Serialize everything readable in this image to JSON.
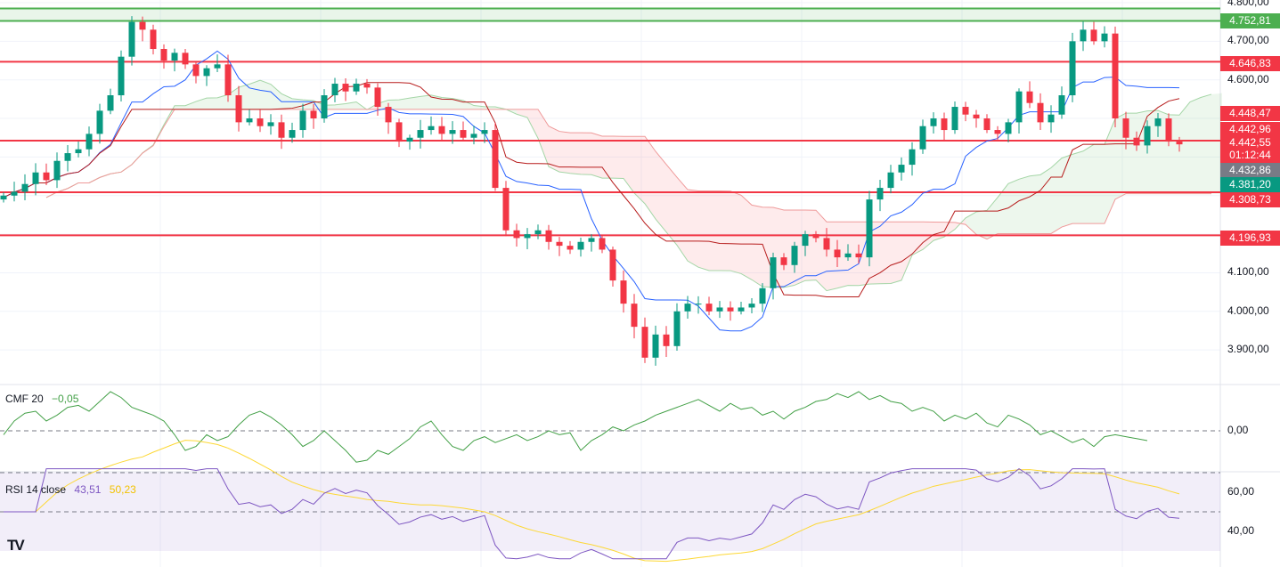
{
  "chart_data": {
    "type": "candlestick",
    "price_axis": {
      "range": [
        3850,
        4800
      ],
      "ticks": [
        "4.800,00",
        "4.700,00",
        "4.600,00",
        "4.100,00",
        "4.000,00",
        "3.900,00"
      ],
      "tick_values": [
        4800,
        4700,
        4600,
        4100,
        4000,
        3900
      ]
    },
    "closes": [
      4300,
      4310,
      4330,
      4360,
      4340,
      4390,
      4410,
      4420,
      4460,
      4520,
      4560,
      4660,
      4750,
      4730,
      4680,
      4650,
      4670,
      4640,
      4610,
      4630,
      4640,
      4560,
      4490,
      4500,
      4480,
      4490,
      4450,
      4470,
      4520,
      4500,
      4560,
      4590,
      4570,
      4590,
      4580,
      4530,
      4490,
      4440,
      4450,
      4470,
      4480,
      4460,
      4470,
      4450,
      4460,
      4470,
      4320,
      4210,
      4190,
      4200,
      4210,
      4180,
      4170,
      4160,
      4180,
      4190,
      4160,
      4080,
      4020,
      3960,
      3880,
      3940,
      3910,
      4000,
      4020,
      4020,
      4000,
      4010,
      4000,
      4010,
      4020,
      4060,
      4140,
      4120,
      4170,
      4200,
      4190,
      4160,
      4140,
      4150,
      4140,
      4290,
      4320,
      4360,
      4380,
      4420,
      4480,
      4500,
      4470,
      4530,
      4510,
      4500,
      4470,
      4460,
      4490,
      4570,
      4540,
      4490,
      4510,
      4560,
      4700,
      4730,
      4700,
      4720,
      4500,
      4450,
      4430,
      4480,
      4500,
      4440,
      4432.86
    ],
    "levels": [
      {
        "value": 4752.81,
        "label": "4.752,81",
        "color": "#4caf50"
      },
      {
        "value": 4646.83,
        "label": "4.646,83",
        "color": "#f23645"
      },
      {
        "value": 4442.55,
        "label": "4.442,55",
        "color": "#f23645"
      },
      {
        "value": 4308.73,
        "label": "4.308,73",
        "color": "#f23645"
      },
      {
        "value": 4196.93,
        "label": "4.196,93",
        "color": "#f23645"
      }
    ],
    "top_green_line": 4785,
    "badges": [
      {
        "label": "4.752,81",
        "value": 4752.81,
        "color": "#4caf50"
      },
      {
        "label": "4.646,83",
        "value": 4646.83,
        "color": "#f23645"
      },
      {
        "label": "4.448,47",
        "value": 4448.47,
        "color": "#f23645"
      },
      {
        "label": "4.442,96",
        "value": 4442.96,
        "color": "#f23645"
      },
      {
        "label": "4.442,55",
        "value": 4442.55,
        "color": "#f23645"
      },
      {
        "label": "01:12:44",
        "value": 4416,
        "color": "#f23645"
      },
      {
        "label": "4.432,86",
        "value": 4432.86,
        "color": "#787b86"
      },
      {
        "label": "4.381,20",
        "value": 4381.2,
        "color": "#089981"
      },
      {
        "label": "4.308,73",
        "value": 4308.73,
        "color": "#f23645"
      },
      {
        "label": "4.196,93",
        "value": 4196.93,
        "color": "#f23645"
      }
    ],
    "cmf": {
      "name": "CMF 20",
      "value": "−0,05",
      "ticks": [
        "0,00"
      ],
      "values": [
        -0.02,
        0.05,
        0.09,
        0.1,
        0.05,
        0.08,
        0.12,
        0.13,
        0.1,
        0.15,
        0.2,
        0.17,
        0.12,
        0.1,
        0.08,
        0.05,
        -0.02,
        -0.1,
        -0.08,
        -0.02,
        -0.05,
        -0.03,
        0.03,
        0.08,
        0.1,
        0.07,
        0.03,
        -0.02,
        -0.08,
        -0.05,
        0.0,
        -0.05,
        -0.1,
        -0.16,
        -0.15,
        -0.1,
        -0.12,
        -0.08,
        -0.04,
        0.02,
        0.05,
        -0.02,
        -0.08,
        -0.1,
        -0.05,
        -0.03,
        -0.06,
        -0.04,
        -0.02,
        -0.05,
        -0.03,
        0.0,
        -0.02,
        -0.01,
        -0.1,
        -0.05,
        -0.02,
        0.02,
        0.0,
        0.03,
        0.05,
        0.08,
        0.1,
        0.12,
        0.14,
        0.16,
        0.13,
        0.1,
        0.14,
        0.11,
        0.12,
        0.08,
        0.1,
        0.06,
        0.1,
        0.12,
        0.15,
        0.16,
        0.19,
        0.17,
        0.2,
        0.16,
        0.18,
        0.15,
        0.14,
        0.1,
        0.12,
        0.1,
        0.05,
        0.08,
        0.06,
        0.09,
        0.04,
        0.02,
        0.08,
        0.06,
        0.03,
        -0.02,
        0.0,
        -0.03,
        -0.06,
        -0.04,
        -0.08,
        -0.03,
        -0.02,
        -0.03,
        -0.04,
        -0.05
      ]
    },
    "rsi": {
      "name": "RSI 14 close",
      "value": "43,51",
      "ma_value": "50,23",
      "ticks": [
        "60,00",
        "40,00"
      ],
      "tick_values": [
        60,
        40
      ]
    }
  },
  "colors": {
    "up": "#089981",
    "down": "#f23645",
    "tenkan": "#2962ff",
    "kijun": "#b71c1c",
    "cmf": "#43a047",
    "rsi": "#7e57c2",
    "rsi_ma": "#fdd835"
  },
  "logo": "TV"
}
